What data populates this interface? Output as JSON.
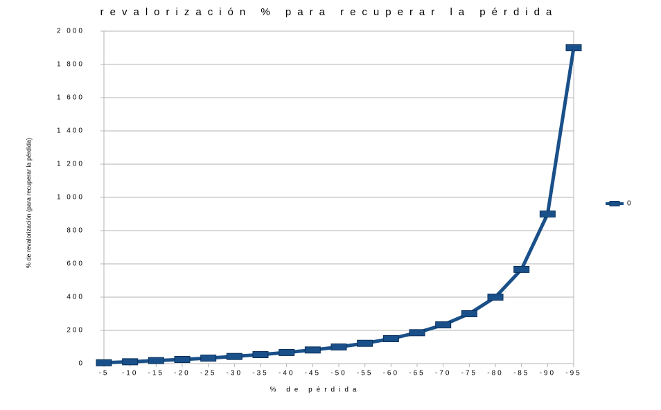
{
  "chart_data": {
    "type": "line",
    "title": "revalorización % para recuperar la pérdida",
    "x_label": "% de pérdida",
    "y_label": "% de revalorización (para recuperar la pérdida)",
    "categories": [
      "-5",
      "-10",
      "-15",
      "-20",
      "-25",
      "-30",
      "-35",
      "-40",
      "-45",
      "-50",
      "-55",
      "-60",
      "-65",
      "-70",
      "-75",
      "-80",
      "-85",
      "-90",
      "-95"
    ],
    "series": [
      {
        "name": "0",
        "color": "#1a5089",
        "values": [
          5,
          11,
          18,
          25,
          33,
          43,
          54,
          67,
          82,
          100,
          122,
          150,
          186,
          233,
          300,
          400,
          567,
          900,
          1900
        ]
      }
    ],
    "ylim": [
      0,
      2000
    ],
    "yticks": [
      0,
      {
        "value": 200,
        "label": "200"
      },
      {
        "value": 400,
        "label": "400"
      },
      {
        "value": 600,
        "label": "600"
      },
      {
        "value": 800,
        "label": "800"
      },
      {
        "value": 1000,
        "label": "1 000"
      },
      {
        "value": 1200,
        "label": "1 200"
      },
      {
        "value": 1400,
        "label": "1 400"
      },
      {
        "value": 1600,
        "label": "1 600"
      },
      {
        "value": 1800,
        "label": "1 800"
      },
      {
        "value": 2000,
        "label": "2 000"
      }
    ],
    "grid": true,
    "legend": "right"
  }
}
